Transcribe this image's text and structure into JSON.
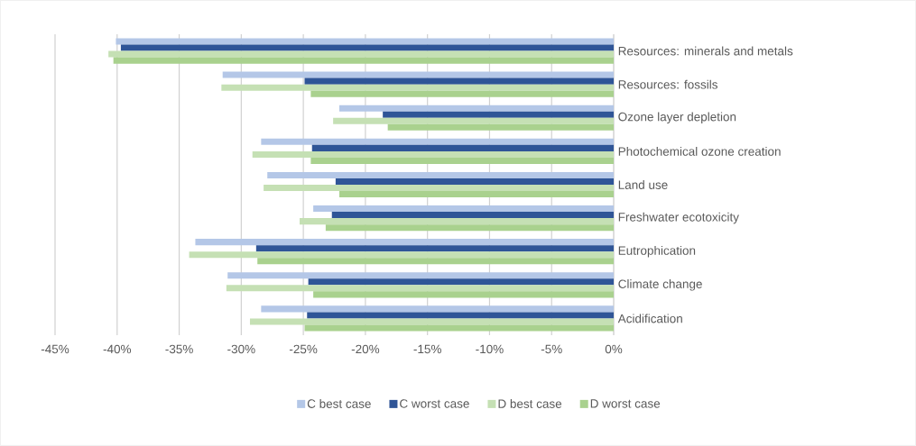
{
  "chart_data": {
    "type": "bar",
    "orientation": "horizontal",
    "categories": [
      "Resources: minerals and metals",
      "Resources: fossils",
      "Ozone layer depletion",
      "Photochemical ozone creation",
      "Land use",
      "Freshwater ecotoxicity",
      "Eutrophication",
      "Climate change",
      "Acidification"
    ],
    "series": [
      {
        "name": "C best case",
        "color": "#b4c7e7",
        "values": [
          -40.1,
          -31.5,
          -22.1,
          -28.4,
          -27.9,
          -24.2,
          -33.7,
          -31.1,
          -28.4
        ]
      },
      {
        "name": "C worst case",
        "color": "#2f5597",
        "values": [
          -39.7,
          -24.9,
          -18.6,
          -24.3,
          -22.4,
          -22.7,
          -28.8,
          -24.6,
          -24.7
        ]
      },
      {
        "name": "D best case",
        "color": "#c5e0b4",
        "values": [
          -40.7,
          -31.6,
          -22.6,
          -29.1,
          -28.2,
          -25.3,
          -34.2,
          -31.2,
          -29.3
        ]
      },
      {
        "name": "D worst case",
        "color": "#a9d18e",
        "values": [
          -40.3,
          -24.4,
          -18.2,
          -24.4,
          -22.1,
          -23.2,
          -28.7,
          -24.2,
          -24.9
        ]
      }
    ],
    "xlim": [
      -45,
      0
    ],
    "xticks": [
      {
        "value": -45,
        "label": "-45%"
      },
      {
        "value": -40,
        "label": "-40%"
      },
      {
        "value": -35,
        "label": "-35%"
      },
      {
        "value": -30,
        "label": "-30%"
      },
      {
        "value": -25,
        "label": "-25%"
      },
      {
        "value": -20,
        "label": "-20%"
      },
      {
        "value": -15,
        "label": "-15%"
      },
      {
        "value": -10,
        "label": "-10%"
      },
      {
        "value": -5,
        "label": "-5%"
      },
      {
        "value": 0,
        "label": "0%"
      }
    ],
    "grid": "x",
    "legend": "bottom"
  }
}
